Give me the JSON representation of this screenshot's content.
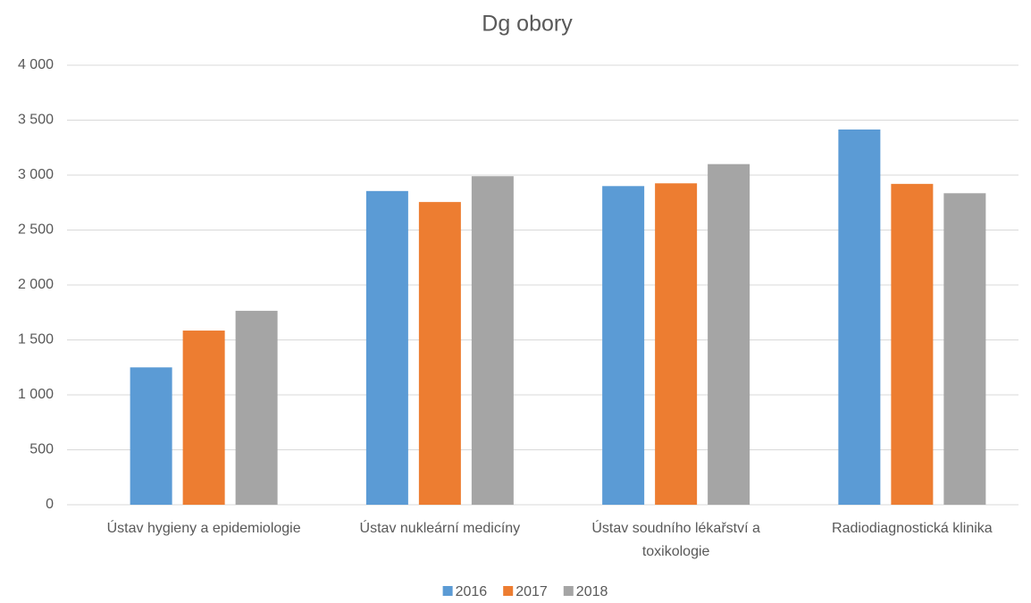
{
  "chart_data": {
    "type": "bar",
    "title": "Dg obory",
    "categories": [
      "Ústav hygieny a epidemiologie",
      "Ústav nukleární medicíny",
      "Ústav soudního lékařství a toxikologie",
      "Radiodiagnostická klinika"
    ],
    "series": [
      {
        "name": "2016",
        "color": "#5b9bd5",
        "values": [
          1250,
          2855,
          2900,
          3415
        ]
      },
      {
        "name": "2017",
        "color": "#ed7d31",
        "values": [
          1585,
          2755,
          2925,
          2920
        ]
      },
      {
        "name": "2018",
        "color": "#a5a5a5",
        "values": [
          1765,
          2990,
          3100,
          2835
        ]
      }
    ],
    "ylim": [
      0,
      4000
    ],
    "yticks": [
      0,
      500,
      {
        "value": 1000,
        "label": "1 000"
      },
      {
        "value": 1500,
        "label": "1 500"
      },
      {
        "value": 2000,
        "label": "2 000"
      },
      {
        "value": 2500,
        "label": "2 500"
      },
      {
        "value": 3000,
        "label": "3 000"
      },
      {
        "value": 3500,
        "label": "3 500"
      },
      {
        "value": 4000,
        "label": "4 000"
      }
    ],
    "grid": true,
    "legend": "bottom"
  }
}
